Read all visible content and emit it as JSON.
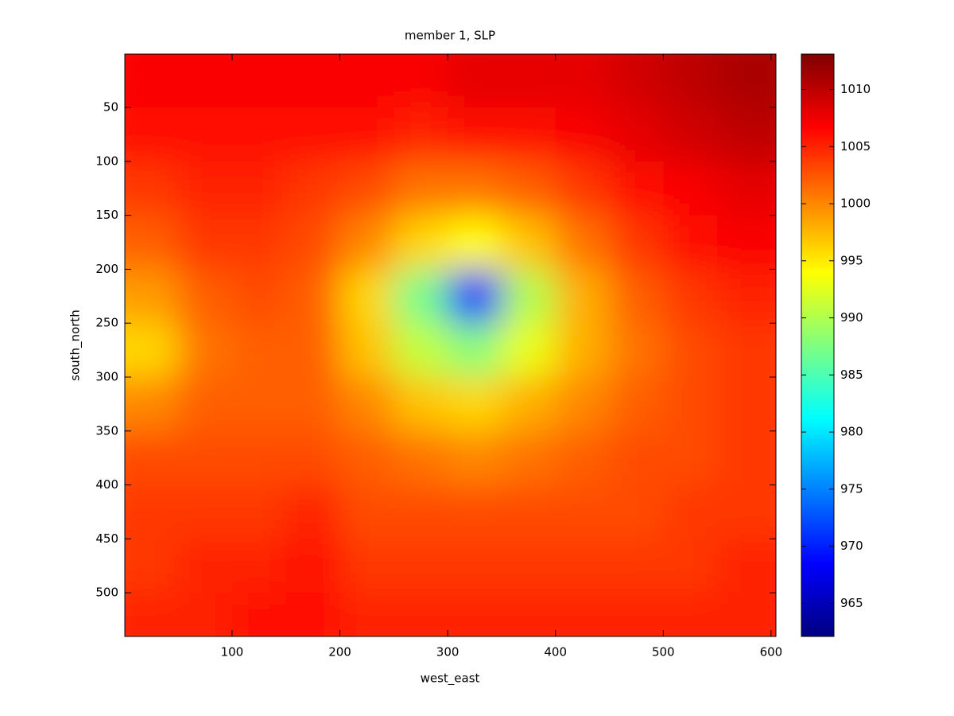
{
  "chart_data": {
    "type": "heatmap",
    "title": "member 1, SLP",
    "xlabel": "west_east",
    "ylabel": "south_north",
    "x": [
      25,
      75,
      125,
      175,
      225,
      275,
      325,
      375,
      425,
      475,
      525,
      575
    ],
    "y": [
      25,
      75,
      125,
      175,
      225,
      275,
      325,
      375,
      425,
      475,
      525
    ],
    "z": [
      [
        1007,
        1007,
        1007,
        1007,
        1007,
        1007,
        1008,
        1008,
        1008,
        1009,
        1010,
        1011
      ],
      [
        1006,
        1006,
        1006,
        1006,
        1006,
        1005,
        1006,
        1006,
        1007,
        1008,
        1009,
        1010
      ],
      [
        1004,
        1005,
        1005,
        1004,
        1003,
        1001,
        1001,
        1002,
        1004,
        1006,
        1007,
        1008
      ],
      [
        1002,
        1004,
        1004,
        1003,
        1000,
        996,
        994,
        997,
        1001,
        1004,
        1006,
        1007
      ],
      [
        999,
        1002,
        1003,
        1002,
        996,
        987,
        970,
        990,
        998,
        1002,
        1004,
        1005
      ],
      [
        996,
        1001,
        1002,
        1002,
        997,
        991,
        988,
        993,
        998,
        1001,
        1003,
        1004
      ],
      [
        1000,
        1002,
        1002,
        1002,
        1000,
        997,
        996,
        998,
        1000,
        1002,
        1003,
        1004
      ],
      [
        1003,
        1003,
        1003,
        1003,
        1002,
        1001,
        1000,
        1001,
        1002,
        1003,
        1003,
        1004
      ],
      [
        1004,
        1004,
        1004,
        1005,
        1003,
        1003,
        1003,
        1003,
        1003,
        1003,
        1004,
        1004
      ],
      [
        1004,
        1005,
        1005,
        1006,
        1004,
        1004,
        1004,
        1004,
        1004,
        1004,
        1004,
        1005
      ],
      [
        1005,
        1005,
        1006,
        1006,
        1005,
        1005,
        1005,
        1005,
        1005,
        1005,
        1005,
        1005
      ]
    ],
    "xlim": [
      0.5,
      604.5
    ],
    "ylim": [
      0.5,
      540.5
    ],
    "xticks": [
      100,
      200,
      300,
      400,
      500,
      600
    ],
    "yticks": [
      50,
      100,
      150,
      200,
      250,
      300,
      350,
      400,
      450,
      500
    ],
    "y_reversed": true,
    "colormap": "jet",
    "clim": [
      962.1,
      1013.1
    ],
    "cticks": [
      965,
      970,
      975,
      980,
      985,
      990,
      995,
      1000,
      1005,
      1010
    ]
  }
}
